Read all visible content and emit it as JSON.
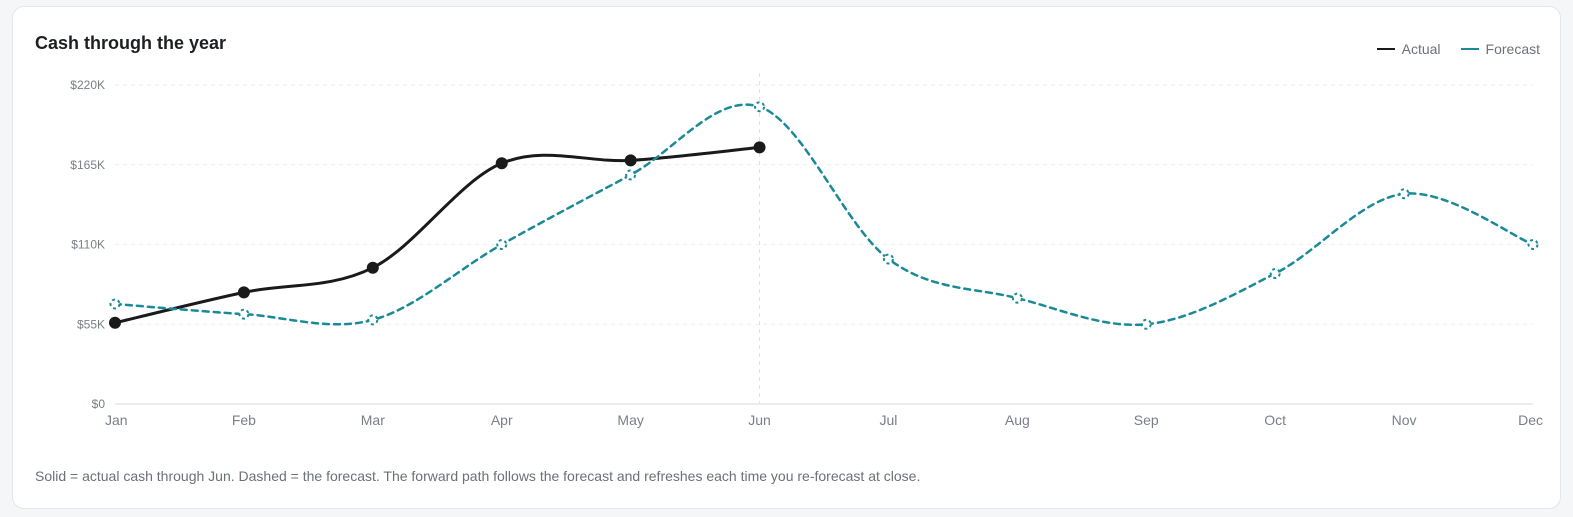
{
  "card": {
    "title": "Cash through the year",
    "note": "Solid = actual cash through Jun. Dashed = the forecast. The forward path follows the forecast and refreshes each time you re-forecast at close."
  },
  "legend": {
    "actual": "Actual",
    "forecast": "Forecast"
  },
  "colors": {
    "actual": "#1a1a1a",
    "forecast": "#1a8a96",
    "grid": "#eceef1",
    "axis": "#d7dade",
    "tick": "#7a7f87"
  },
  "chart_data": {
    "type": "line",
    "title": "Cash through the year",
    "x": [
      "Jan",
      "Feb",
      "Mar",
      "Apr",
      "May",
      "Jun",
      "Jul",
      "Aug",
      "Sep",
      "Oct",
      "Nov",
      "Dec"
    ],
    "y_ticks": [
      0,
      55000,
      110000,
      165000,
      220000
    ],
    "y_tick_labels": [
      "$0",
      "$55K",
      "$110K",
      "$165K",
      "$220K"
    ],
    "ylim": [
      0,
      220000
    ],
    "grid": true,
    "legend_position": "top-right",
    "marker_month": "Jun",
    "series": [
      {
        "name": "Actual",
        "style": "solid",
        "values": [
          56000,
          77000,
          94000,
          166000,
          168000,
          177000,
          null,
          null,
          null,
          null,
          null,
          null
        ]
      },
      {
        "name": "Forecast",
        "style": "dashed",
        "values": [
          69000,
          62000,
          58000,
          110000,
          158000,
          205000,
          100000,
          73000,
          55000,
          90000,
          145000,
          110000
        ]
      }
    ]
  }
}
